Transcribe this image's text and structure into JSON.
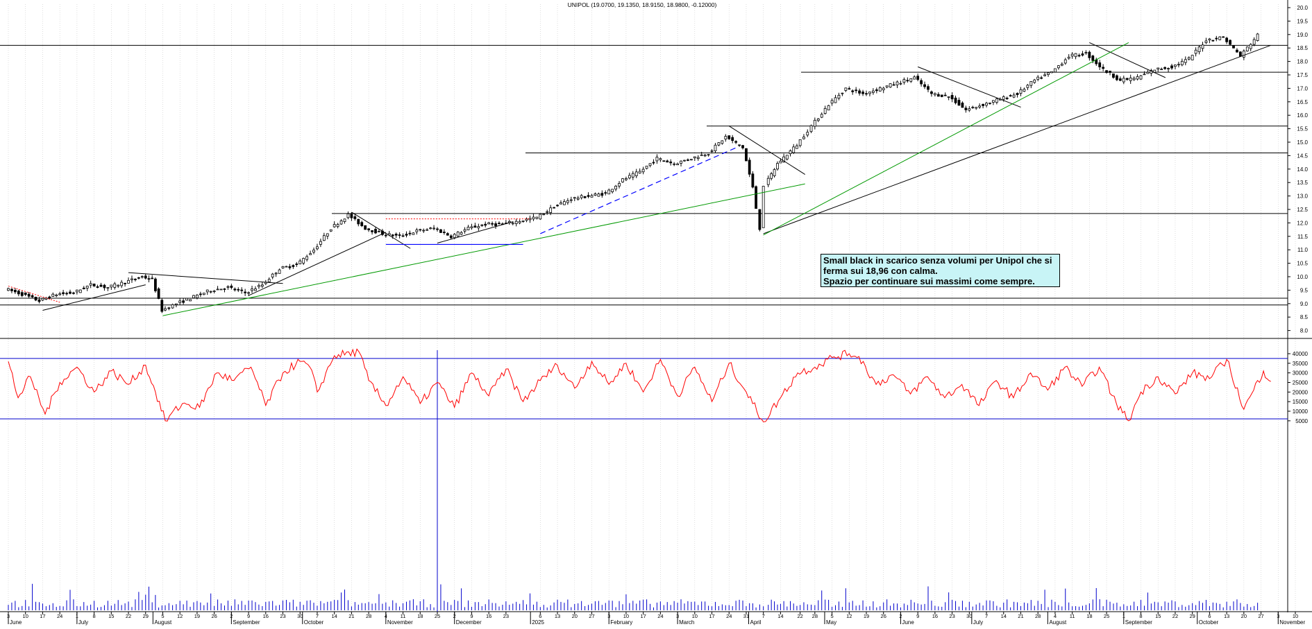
{
  "chart_title": "UNIPOL (19.0700, 19.1350, 18.9150, 18.9800, -0.12000)",
  "annotation": {
    "line1": "Small black in scarico senza volumi per Unipol che si",
    "line2": "ferma sui 18,96 con calma.",
    "line3": "Spazio per continuare sui massimi come sempre."
  },
  "colors": {
    "price": "#000000",
    "indicator": "#ff0000",
    "level_lines": "#0000cc",
    "trend_green": "#009900",
    "trend_blue_dashed": "#0000ff",
    "dotted_red": "#ff0000",
    "annotation_bg": "#c8f4f6",
    "grid": "#c8c8c8"
  },
  "chart_data": [
    {
      "type": "candlestick",
      "title": "UNIPOL (19.0700, 19.1350, 18.9150, 18.9800, -0.12000)",
      "ylim": [
        7.6,
        20.0
      ],
      "y_ticks": [
        "20.0",
        "19.5",
        "19.0",
        "18.5",
        "18.0",
        "17.5",
        "17.0",
        "16.5",
        "16.0",
        "15.5",
        "15.0",
        "14.5",
        "14.0",
        "13.5",
        "13.0",
        "12.5",
        "12.0",
        "11.5",
        "11.0",
        "10.5",
        "10.0",
        "9.5",
        "9.0",
        "8.5",
        "8.0"
      ],
      "x_range": [
        "2024-06-03",
        "2025-11-10"
      ],
      "close_path": [
        [
          "2024-06-03",
          9.55
        ],
        [
          "2024-06-10",
          9.35
        ],
        [
          "2024-06-17",
          9.1
        ],
        [
          "2024-06-24",
          9.35
        ],
        [
          "2024-07-01",
          9.4
        ],
        [
          "2024-07-08",
          9.7
        ],
        [
          "2024-07-15",
          9.6
        ],
        [
          "2024-07-22",
          9.8
        ],
        [
          "2024-07-29",
          10.0
        ],
        [
          "2024-08-02",
          9.9
        ],
        [
          "2024-08-06",
          8.75
        ],
        [
          "2024-08-12",
          9.0
        ],
        [
          "2024-08-19",
          9.25
        ],
        [
          "2024-08-26",
          9.5
        ],
        [
          "2024-09-02",
          9.6
        ],
        [
          "2024-09-09",
          9.4
        ],
        [
          "2024-09-16",
          9.7
        ],
        [
          "2024-09-23",
          10.3
        ],
        [
          "2024-09-30",
          10.45
        ],
        [
          "2024-10-07",
          11.0
        ],
        [
          "2024-10-14",
          11.8
        ],
        [
          "2024-10-21",
          12.3
        ],
        [
          "2024-10-28",
          11.8
        ],
        [
          "2024-11-04",
          11.6
        ],
        [
          "2024-11-11",
          11.5
        ],
        [
          "2024-11-18",
          11.7
        ],
        [
          "2024-11-25",
          11.8
        ],
        [
          "2024-12-02",
          11.5
        ],
        [
          "2024-12-09",
          11.8
        ],
        [
          "2024-12-16",
          11.95
        ],
        [
          "2024-12-23",
          11.95
        ],
        [
          "2025-01-06",
          12.2
        ],
        [
          "2025-01-13",
          12.6
        ],
        [
          "2025-01-20",
          12.9
        ],
        [
          "2025-01-27",
          13.0
        ],
        [
          "2025-02-03",
          13.1
        ],
        [
          "2025-02-10",
          13.6
        ],
        [
          "2025-02-17",
          13.9
        ],
        [
          "2025-02-24",
          14.4
        ],
        [
          "2025-03-03",
          14.2
        ],
        [
          "2025-03-10",
          14.4
        ],
        [
          "2025-03-17",
          14.6
        ],
        [
          "2025-03-24",
          15.2
        ],
        [
          "2025-03-31",
          14.8
        ],
        [
          "2025-04-04",
          13.3
        ],
        [
          "2025-04-07",
          11.8
        ],
        [
          "2025-04-09",
          13.4
        ],
        [
          "2025-04-14",
          14.2
        ],
        [
          "2025-04-22",
          14.9
        ],
        [
          "2025-04-28",
          15.6
        ],
        [
          "2025-05-05",
          16.4
        ],
        [
          "2025-05-12",
          17.0
        ],
        [
          "2025-05-19",
          16.8
        ],
        [
          "2025-05-26",
          17.0
        ],
        [
          "2025-06-02",
          17.2
        ],
        [
          "2025-06-09",
          17.4
        ],
        [
          "2025-06-16",
          16.8
        ],
        [
          "2025-06-23",
          16.7
        ],
        [
          "2025-06-30",
          16.2
        ],
        [
          "2025-07-07",
          16.4
        ],
        [
          "2025-07-14",
          16.6
        ],
        [
          "2025-07-21",
          16.8
        ],
        [
          "2025-07-28",
          17.3
        ],
        [
          "2025-08-04",
          17.6
        ],
        [
          "2025-08-11",
          18.2
        ],
        [
          "2025-08-18",
          18.3
        ],
        [
          "2025-08-25",
          17.7
        ],
        [
          "2025-09-01",
          17.3
        ],
        [
          "2025-09-08",
          17.4
        ],
        [
          "2025-09-15",
          17.7
        ],
        [
          "2025-09-22",
          17.8
        ],
        [
          "2025-09-29",
          18.1
        ],
        [
          "2025-10-06",
          18.8
        ],
        [
          "2025-10-13",
          18.9
        ],
        [
          "2025-10-20",
          18.2
        ],
        [
          "2025-10-27",
          18.98
        ]
      ],
      "horizontal_levels": [
        18.6,
        17.6,
        15.6,
        14.6,
        12.35,
        9.2,
        8.95
      ],
      "trend_lines": [
        {
          "from": [
            "2024-06-17",
            8.75
          ],
          "to": [
            "2024-07-29",
            9.7
          ]
        },
        {
          "from": [
            "2024-07-22",
            10.15
          ],
          "to": [
            "2024-09-23",
            9.75
          ]
        },
        {
          "from": [
            "2024-09-09",
            9.3
          ],
          "to": [
            "2024-11-04",
            11.65
          ]
        },
        {
          "from": [
            "2024-10-21",
            12.4
          ],
          "to": [
            "2024-11-14",
            11.05
          ]
        },
        {
          "from": [
            "2024-11-25",
            11.25
          ],
          "to": [
            "2024-12-26",
            12.05
          ]
        },
        {
          "from": [
            "2025-03-24",
            15.6
          ],
          "to": [
            "2025-04-24",
            13.8
          ]
        },
        {
          "from": [
            "2025-04-07",
            11.6
          ],
          "to": [
            "2025-10-31",
            18.6
          ]
        },
        {
          "from": [
            "2025-06-09",
            17.8
          ],
          "to": [
            "2025-07-21",
            16.3
          ]
        },
        {
          "from": [
            "2025-08-18",
            18.7
          ],
          "to": [
            "2025-09-18",
            17.4
          ]
        }
      ],
      "green_lines": [
        {
          "from": [
            "2024-08-05",
            8.55
          ],
          "to": [
            "2025-04-24",
            13.45
          ]
        },
        {
          "from": [
            "2025-04-07",
            11.55
          ],
          "to": [
            "2025-09-03",
            18.7
          ]
        }
      ],
      "blue_dashed_line": {
        "from": [
          "2025-01-06",
          11.6
        ],
        "to": [
          "2025-03-27",
          14.8
        ]
      },
      "blue_support": {
        "from": [
          "2024-11-04",
          11.2
        ],
        "to": [
          "2024-12-30",
          11.2
        ]
      },
      "red_dotted_lines": [
        {
          "from": [
            "2024-06-03",
            9.65
          ],
          "to": [
            "2024-06-24",
            9.05
          ]
        },
        {
          "from": [
            "2024-11-04",
            12.15
          ],
          "to": [
            "2025-01-02",
            12.15
          ]
        }
      ]
    },
    {
      "type": "line",
      "name": "indicator",
      "ylim": [
        0,
        42000
      ],
      "y_ticks": [
        "40000",
        "35000",
        "30000",
        "25000",
        "20000",
        "15000",
        "10000",
        "5000"
      ],
      "levels": [
        37500,
        6000
      ],
      "vertical_marker": "2024-11-25",
      "points": [
        [
          "2024-06-03",
          36000
        ],
        [
          "2024-06-07",
          17000
        ],
        [
          "2024-06-12",
          28000
        ],
        [
          "2024-06-18",
          8500
        ],
        [
          "2024-06-24",
          25000
        ],
        [
          "2024-07-01",
          33000
        ],
        [
          "2024-07-08",
          20000
        ],
        [
          "2024-07-15",
          31000
        ],
        [
          "2024-07-22",
          24000
        ],
        [
          "2024-07-29",
          34000
        ],
        [
          "2024-08-02",
          20000
        ],
        [
          "2024-08-06",
          5000
        ],
        [
          "2024-08-13",
          14000
        ],
        [
          "2024-08-20",
          12000
        ],
        [
          "2024-08-27",
          30000
        ],
        [
          "2024-09-03",
          26000
        ],
        [
          "2024-09-10",
          33000
        ],
        [
          "2024-09-16",
          13000
        ],
        [
          "2024-09-23",
          30000
        ],
        [
          "2024-09-30",
          36000
        ],
        [
          "2024-10-04",
          33000
        ],
        [
          "2024-10-07",
          20000
        ],
        [
          "2024-10-14",
          39000
        ],
        [
          "2024-10-24",
          41000
        ],
        [
          "2024-10-28",
          26000
        ],
        [
          "2024-11-04",
          13000
        ],
        [
          "2024-11-11",
          28000
        ],
        [
          "2024-11-18",
          14000
        ],
        [
          "2024-11-25",
          25000
        ],
        [
          "2024-12-02",
          12000
        ],
        [
          "2024-12-09",
          30000
        ],
        [
          "2024-12-16",
          18000
        ],
        [
          "2024-12-23",
          32000
        ],
        [
          "2024-12-30",
          15000
        ],
        [
          "2025-01-06",
          26000
        ],
        [
          "2025-01-13",
          34000
        ],
        [
          "2025-01-20",
          22000
        ],
        [
          "2025-01-27",
          36000
        ],
        [
          "2025-02-03",
          24000
        ],
        [
          "2025-02-10",
          35000
        ],
        [
          "2025-02-17",
          20000
        ],
        [
          "2025-02-24",
          37000
        ],
        [
          "2025-03-03",
          18000
        ],
        [
          "2025-03-10",
          33000
        ],
        [
          "2025-03-17",
          15000
        ],
        [
          "2025-03-24",
          35000
        ],
        [
          "2025-03-31",
          20000
        ],
        [
          "2025-04-07",
          4500
        ],
        [
          "2025-04-14",
          17000
        ],
        [
          "2025-04-21",
          30000
        ],
        [
          "2025-04-28",
          33000
        ],
        [
          "2025-05-05",
          38000
        ],
        [
          "2025-05-12",
          40000
        ],
        [
          "2025-05-16",
          38500
        ],
        [
          "2025-05-23",
          24000
        ],
        [
          "2025-05-30",
          29000
        ],
        [
          "2025-06-06",
          19000
        ],
        [
          "2025-06-13",
          28000
        ],
        [
          "2025-06-20",
          17000
        ],
        [
          "2025-06-27",
          24000
        ],
        [
          "2025-07-04",
          13000
        ],
        [
          "2025-07-11",
          26000
        ],
        [
          "2025-07-18",
          17000
        ],
        [
          "2025-07-25",
          30000
        ],
        [
          "2025-08-01",
          21000
        ],
        [
          "2025-08-08",
          33000
        ],
        [
          "2025-08-15",
          23000
        ],
        [
          "2025-08-22",
          33000
        ],
        [
          "2025-08-29",
          14000
        ],
        [
          "2025-09-03",
          5000
        ],
        [
          "2025-09-08",
          20000
        ],
        [
          "2025-09-15",
          28000
        ],
        [
          "2025-09-22",
          19000
        ],
        [
          "2025-09-29",
          30000
        ],
        [
          "2025-10-06",
          27000
        ],
        [
          "2025-10-13",
          37000
        ],
        [
          "2025-10-20",
          11000
        ],
        [
          "2025-10-24",
          21000
        ],
        [
          "2025-10-28",
          31000
        ],
        [
          "2025-10-31",
          25500
        ]
      ]
    }
  ],
  "x_axis": {
    "ticks": [
      [
        "2024-06-03",
        "3"
      ],
      [
        "2024-06-10",
        "10"
      ],
      [
        "2024-06-17",
        "17"
      ],
      [
        "2024-06-24",
        "24"
      ],
      [
        "2024-07-01",
        "1"
      ],
      [
        "2024-07-08",
        "8"
      ],
      [
        "2024-07-15",
        "15"
      ],
      [
        "2024-07-22",
        "22"
      ],
      [
        "2024-07-29",
        "29"
      ],
      [
        "2024-08-05",
        "5"
      ],
      [
        "2024-08-12",
        "12"
      ],
      [
        "2024-08-19",
        "19"
      ],
      [
        "2024-08-26",
        "26"
      ],
      [
        "2024-09-02",
        "2"
      ],
      [
        "2024-09-09",
        "9"
      ],
      [
        "2024-09-16",
        "16"
      ],
      [
        "2024-09-23",
        "23"
      ],
      [
        "2024-09-30",
        "30"
      ],
      [
        "2024-10-07",
        "7"
      ],
      [
        "2024-10-14",
        "14"
      ],
      [
        "2024-10-21",
        "21"
      ],
      [
        "2024-10-28",
        "28"
      ],
      [
        "2024-11-04",
        "4"
      ],
      [
        "2024-11-11",
        "11"
      ],
      [
        "2024-11-18",
        "18"
      ],
      [
        "2024-11-25",
        "25"
      ],
      [
        "2024-12-02",
        "2"
      ],
      [
        "2024-12-09",
        "9"
      ],
      [
        "2024-12-16",
        "16"
      ],
      [
        "2024-12-23",
        "23"
      ],
      [
        "2025-01-06",
        "6"
      ],
      [
        "2025-01-13",
        "13"
      ],
      [
        "2025-01-20",
        "20"
      ],
      [
        "2025-01-27",
        "27"
      ],
      [
        "2025-02-03",
        "3"
      ],
      [
        "2025-02-10",
        "10"
      ],
      [
        "2025-02-17",
        "17"
      ],
      [
        "2025-02-24",
        "24"
      ],
      [
        "2025-03-03",
        "3"
      ],
      [
        "2025-03-10",
        "10"
      ],
      [
        "2025-03-17",
        "17"
      ],
      [
        "2025-03-24",
        "24"
      ],
      [
        "2025-03-31",
        "31"
      ],
      [
        "2025-04-07",
        "7"
      ],
      [
        "2025-04-14",
        "14"
      ],
      [
        "2025-04-22",
        "22"
      ],
      [
        "2025-04-28",
        "28"
      ],
      [
        "2025-05-05",
        "5"
      ],
      [
        "2025-05-12",
        "12"
      ],
      [
        "2025-05-19",
        "19"
      ],
      [
        "2025-05-26",
        "26"
      ],
      [
        "2025-06-02",
        "2"
      ],
      [
        "2025-06-09",
        "9"
      ],
      [
        "2025-06-16",
        "16"
      ],
      [
        "2025-06-23",
        "23"
      ],
      [
        "2025-06-30",
        "30"
      ],
      [
        "2025-07-07",
        "7"
      ],
      [
        "2025-07-14",
        "14"
      ],
      [
        "2025-07-21",
        "21"
      ],
      [
        "2025-07-28",
        "28"
      ],
      [
        "2025-08-04",
        "4"
      ],
      [
        "2025-08-11",
        "11"
      ],
      [
        "2025-08-18",
        "18"
      ],
      [
        "2025-08-25",
        "25"
      ],
      [
        "2025-09-01",
        "1"
      ],
      [
        "2025-09-08",
        "8"
      ],
      [
        "2025-09-15",
        "15"
      ],
      [
        "2025-09-22",
        "22"
      ],
      [
        "2025-09-29",
        "29"
      ],
      [
        "2025-10-06",
        "6"
      ],
      [
        "2025-10-13",
        "13"
      ],
      [
        "2025-10-20",
        "20"
      ],
      [
        "2025-10-27",
        "27"
      ],
      [
        "2025-11-03",
        "3"
      ],
      [
        "2025-11-10",
        "10"
      ]
    ],
    "months": [
      [
        "2024-06-03",
        "June"
      ],
      [
        "2024-07-01",
        "July"
      ],
      [
        "2024-08-01",
        "August"
      ],
      [
        "2024-09-02",
        "September"
      ],
      [
        "2024-10-01",
        "October"
      ],
      [
        "2024-11-04",
        "November"
      ],
      [
        "2024-12-02",
        "December"
      ],
      [
        "2025-01-02",
        "2025"
      ],
      [
        "2025-02-03",
        "February"
      ],
      [
        "2025-03-03",
        "March"
      ],
      [
        "2025-04-01",
        "April"
      ],
      [
        "2025-05-02",
        "May"
      ],
      [
        "2025-06-02",
        "June"
      ],
      [
        "2025-07-01",
        "July"
      ],
      [
        "2025-08-01",
        "August"
      ],
      [
        "2025-09-01",
        "September"
      ],
      [
        "2025-10-01",
        "October"
      ],
      [
        "2025-11-03",
        "November"
      ]
    ]
  }
}
